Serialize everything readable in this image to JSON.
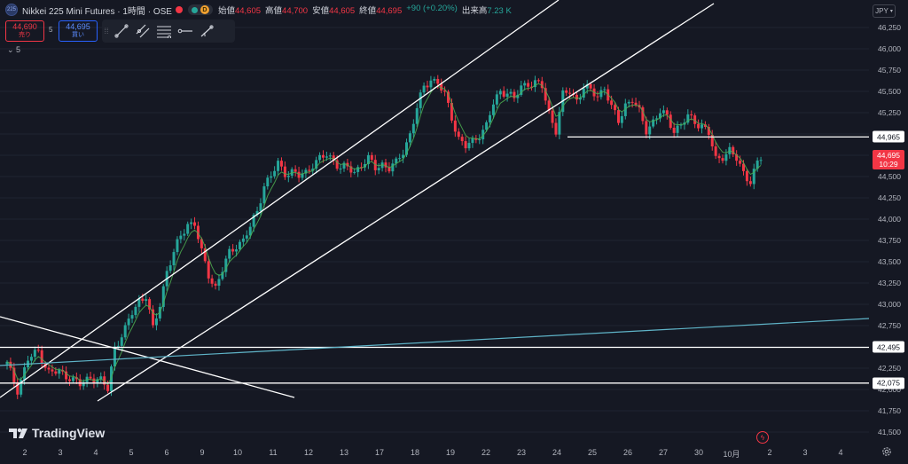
{
  "header": {
    "symbol_badge": "225",
    "title": "Nikkei 225 Mini Futures · 1時間 · OSE",
    "indicator_d": "D",
    "ohlc": [
      {
        "k": "始値",
        "v": "44,605"
      },
      {
        "k": "高値",
        "v": "44,700"
      },
      {
        "k": "安値",
        "v": "44,605"
      },
      {
        "k": "終値",
        "v": "44,695"
      }
    ],
    "change": "+90 (+0.20%)",
    "volume_label": "出来高",
    "volume_value": "7.23 K"
  },
  "trade": {
    "sell_price": "44,690",
    "sell_label": "売り",
    "spread": "5",
    "buy_price": "44,695",
    "buy_label": "買い"
  },
  "collapse_label": "5",
  "currency": "JPY",
  "brand": "TradingView",
  "colors": {
    "up": "#26a69a",
    "down": "#f23645",
    "ma": "#4caf50",
    "trend": "#ffffff",
    "teal_line": "#5fb4c8",
    "background": "#151823"
  },
  "price_tags": {
    "resistance": "44,965",
    "live_price": "44,695",
    "live_time": "10:29",
    "support_high": "42,495",
    "support_low": "42,075"
  },
  "icons": [
    "drag-handle-icon",
    "trend-line-icon",
    "parallel-line-icon",
    "fib-lines-icon",
    "horizontal-ray-icon",
    "trend-angle-icon",
    "gear-icon",
    "flash-icon"
  ],
  "chart_data": {
    "type": "candlestick",
    "title": "Nikkei 225 Mini Futures · 1時間 · OSE",
    "y_ticks": [
      "46,250",
      "46,000",
      "45,750",
      "45,500",
      "45,250",
      "45,000",
      "44,750",
      "44,500",
      "44,250",
      "44,000",
      "43,750",
      "43,500",
      "43,250",
      "43,000",
      "42,750",
      "42,500",
      "42,250",
      "42,000",
      "41,750",
      "41,500"
    ],
    "x_ticks": [
      "2",
      "3",
      "4",
      "5",
      "6",
      "9",
      "10",
      "11",
      "12",
      "13",
      "17",
      "18",
      "19",
      "22",
      "23",
      "24",
      "25",
      "26",
      "27",
      "30",
      "10月",
      "2",
      "3",
      "4"
    ],
    "ylim": [
      41500,
      46250
    ],
    "horizontal_levels": [
      44965,
      42495,
      42075
    ],
    "last_close": 44695,
    "anchors": [
      [
        0,
        42300
      ],
      [
        3,
        42000
      ],
      [
        6,
        42350
      ],
      [
        9,
        42450
      ],
      [
        12,
        42200
      ],
      [
        15,
        42200
      ],
      [
        18,
        42150
      ],
      [
        21,
        42050
      ],
      [
        24,
        42150
      ],
      [
        27,
        42100
      ],
      [
        29,
        42000
      ],
      [
        31,
        42500
      ],
      [
        34,
        42700
      ],
      [
        36,
        42900
      ],
      [
        38,
        43050
      ],
      [
        40,
        43100
      ],
      [
        42,
        42700
      ],
      [
        44,
        43000
      ],
      [
        46,
        43400
      ],
      [
        48,
        43600
      ],
      [
        50,
        43800
      ],
      [
        52,
        43950
      ],
      [
        54,
        43950
      ],
      [
        56,
        43600
      ],
      [
        58,
        43350
      ],
      [
        60,
        43200
      ],
      [
        62,
        43400
      ],
      [
        64,
        43600
      ],
      [
        66,
        43700
      ],
      [
        68,
        43750
      ],
      [
        70,
        43900
      ],
      [
        72,
        44100
      ],
      [
        74,
        44400
      ],
      [
        76,
        44500
      ],
      [
        78,
        44650
      ],
      [
        80,
        44550
      ],
      [
        82,
        44550
      ],
      [
        84,
        44500
      ],
      [
        86,
        44550
      ],
      [
        88,
        44650
      ],
      [
        90,
        44700
      ],
      [
        92,
        44750
      ],
      [
        94,
        44700
      ],
      [
        96,
        44600
      ],
      [
        98,
        44600
      ],
      [
        100,
        44550
      ],
      [
        102,
        44650
      ],
      [
        104,
        44700
      ],
      [
        106,
        44600
      ],
      [
        108,
        44650
      ],
      [
        110,
        44600
      ],
      [
        112,
        44650
      ],
      [
        114,
        44800
      ],
      [
        116,
        45000
      ],
      [
        118,
        45300
      ],
      [
        120,
        45550
      ],
      [
        122,
        45650
      ],
      [
        124,
        45600
      ],
      [
        126,
        45450
      ],
      [
        128,
        45200
      ],
      [
        130,
        44950
      ],
      [
        132,
        44850
      ],
      [
        134,
        44900
      ],
      [
        136,
        45000
      ],
      [
        138,
        45100
      ],
      [
        140,
        45350
      ],
      [
        142,
        45500
      ],
      [
        144,
        45500
      ],
      [
        146,
        45400
      ],
      [
        148,
        45550
      ],
      [
        150,
        45600
      ],
      [
        152,
        45600
      ],
      [
        154,
        45550
      ],
      [
        156,
        45250
      ],
      [
        158,
        45050
      ],
      [
        160,
        45450
      ],
      [
        162,
        45500
      ],
      [
        164,
        45400
      ],
      [
        166,
        45550
      ],
      [
        168,
        45500
      ],
      [
        170,
        45450
      ],
      [
        172,
        45550
      ],
      [
        174,
        45300
      ],
      [
        176,
        45150
      ],
      [
        178,
        45350
      ],
      [
        180,
        45400
      ],
      [
        182,
        45250
      ],
      [
        184,
        45050
      ],
      [
        186,
        45150
      ],
      [
        188,
        45250
      ],
      [
        190,
        45200
      ],
      [
        192,
        45050
      ],
      [
        194,
        45100
      ],
      [
        196,
        45200
      ],
      [
        198,
        45150
      ],
      [
        200,
        45100
      ],
      [
        202,
        45000
      ],
      [
        204,
        44700
      ],
      [
        206,
        44750
      ],
      [
        208,
        44800
      ],
      [
        210,
        44700
      ],
      [
        212,
        44550
      ],
      [
        214,
        44450
      ],
      [
        216,
        44650
      ],
      [
        217,
        44695
      ]
    ],
    "ma_offset": 0.35
  }
}
